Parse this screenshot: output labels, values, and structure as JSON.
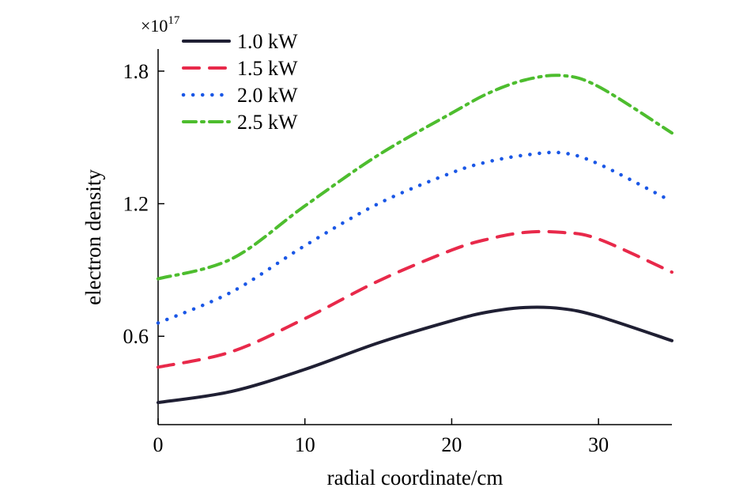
{
  "chart_data": {
    "type": "line",
    "xlabel": "radial coordinate/cm",
    "ylabel": "electron density",
    "y_multiplier_base": "×10",
    "y_multiplier_exp": "17",
    "xlim": [
      0,
      35
    ],
    "ylim": [
      0.2,
      1.9
    ],
    "xticks": [
      0,
      10,
      20,
      30
    ],
    "xtick_labels": [
      "0",
      "10",
      "20",
      "30"
    ],
    "yticks": [
      0.6,
      1.2,
      1.8
    ],
    "ytick_labels": [
      "0.6",
      "1.2",
      "1.8"
    ],
    "grid": false,
    "legend_position": "top-left",
    "x": [
      0,
      5,
      10,
      15,
      20,
      22.5,
      25,
      27.5,
      30,
      35
    ],
    "series": [
      {
        "name": "1.0 kW",
        "style": "solid",
        "color": "#1f1f33",
        "values": [
          0.3,
          0.35,
          0.45,
          0.57,
          0.67,
          0.71,
          0.73,
          0.725,
          0.69,
          0.58
        ]
      },
      {
        "name": "1.5 kW",
        "style": "dashed",
        "color": "#e8294a",
        "values": [
          0.46,
          0.53,
          0.68,
          0.85,
          0.99,
          1.04,
          1.07,
          1.07,
          1.04,
          0.89
        ]
      },
      {
        "name": "2.0 kW",
        "style": "dotted",
        "color": "#1a57e6",
        "values": [
          0.66,
          0.8,
          1.01,
          1.2,
          1.34,
          1.39,
          1.42,
          1.43,
          1.38,
          1.21
        ]
      },
      {
        "name": "2.5 kW",
        "style": "dashdot",
        "color": "#4dbd2e",
        "values": [
          0.86,
          0.95,
          1.19,
          1.42,
          1.61,
          1.7,
          1.76,
          1.78,
          1.73,
          1.52
        ]
      }
    ]
  }
}
